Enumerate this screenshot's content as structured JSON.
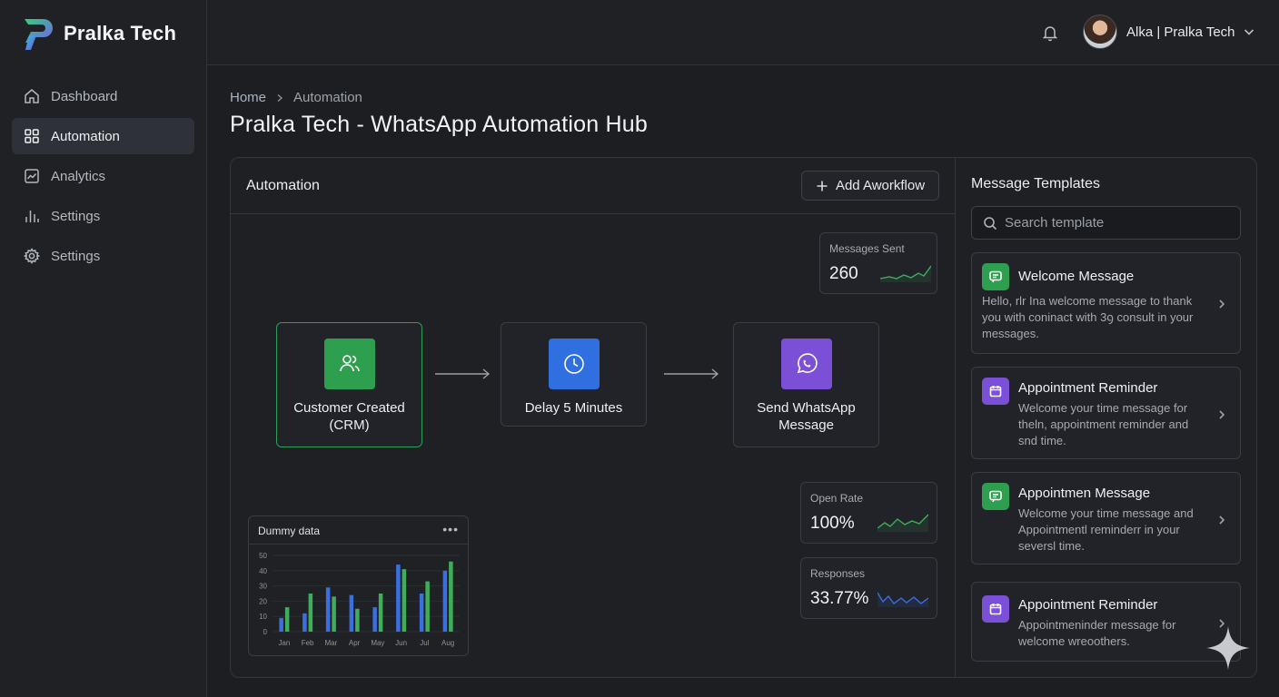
{
  "brand": {
    "name": "Pralka Tech"
  },
  "sidebar": {
    "items": [
      {
        "label": "Dashboard",
        "icon": "home-icon",
        "active": false
      },
      {
        "label": "Automation",
        "icon": "grid-icon",
        "active": true
      },
      {
        "label": "Analytics",
        "icon": "analytics-icon",
        "active": false
      },
      {
        "label": "Settings",
        "icon": "bar-chart-icon",
        "active": false
      },
      {
        "label": "Settings",
        "icon": "gear-icon",
        "active": false
      }
    ]
  },
  "topbar": {
    "user_label": "Alka | Pralka Tech"
  },
  "breadcrumb": {
    "home": "Home",
    "current": "Automation"
  },
  "page": {
    "title": "Pralka Tech - WhatsApp Automation Hub"
  },
  "automation": {
    "title": "Automation",
    "add_button": "Add Aworkflow",
    "nodes": [
      {
        "label": "Customer Created (CRM)",
        "icon": "users-icon",
        "color": "#2e9e4f"
      },
      {
        "label": "Delay 5 Minutes",
        "icon": "clock-icon",
        "color": "#2f6fe0"
      },
      {
        "label": "Send WhatsApp Message",
        "icon": "whatsapp-icon",
        "color": "#7b4fd6"
      }
    ],
    "stats": [
      {
        "label": "Messages Sent",
        "value": "260"
      },
      {
        "label": "Open Rate",
        "value": "100%"
      },
      {
        "label": "Responses",
        "value": "33.77%"
      }
    ]
  },
  "chart_data": {
    "type": "bar",
    "title": "Dummy data",
    "categories": [
      "Jan",
      "Feb",
      "Mar",
      "Apr",
      "May",
      "Jun",
      "Jul",
      "Aug"
    ],
    "yticks": [
      "0",
      "10",
      "20",
      "30",
      "40",
      "50"
    ],
    "ylim": [
      0,
      50
    ],
    "series": [
      {
        "color": "#3b6fe0",
        "values": [
          9,
          12,
          29,
          24,
          16,
          44,
          25,
          40
        ]
      },
      {
        "color": "#3fae5a",
        "values": [
          16,
          25,
          23,
          15,
          25,
          41,
          33,
          46
        ]
      }
    ]
  },
  "templates": {
    "title": "Message Templates",
    "search_placeholder": "Search template",
    "items": [
      {
        "name": "Welcome Message",
        "description": "Hello, rlr Ina welcome message to thank you with coninact with 3ꝯ consult in your messages.",
        "icon": "chat-icon",
        "color": "#2e9e4f"
      },
      {
        "name": "Appointment Reminder",
        "description": "Welcome your time message for theln, appointment  reminder and snd time.",
        "icon": "calendar-icon",
        "color": "#7b4fd6"
      },
      {
        "name": "Appointmen Message",
        "description": "Welcome your time message and Appointmentl  reminderr in your seversl time.",
        "icon": "chat-icon",
        "color": "#2e9e4f"
      },
      {
        "name": "Appointment Reminder",
        "description": "Appointmeninder message for welcome wreoothers.",
        "icon": "calendar-icon",
        "color": "#7b4fd6"
      }
    ]
  }
}
